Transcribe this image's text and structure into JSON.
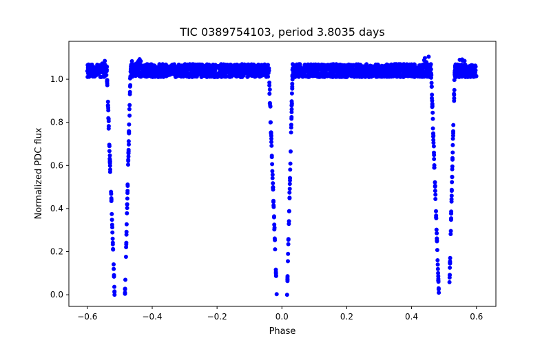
{
  "chart_data": {
    "type": "scatter",
    "title": "TIC 0389754103, period 3.8035 days",
    "xlabel": "Phase",
    "ylabel": "Normalized PDC flux",
    "xlim": [
      -0.657,
      0.66
    ],
    "ylim": [
      -0.054,
      1.176
    ],
    "xticks": [
      -0.6,
      -0.4,
      -0.2,
      0.0,
      0.2,
      0.4,
      0.6
    ],
    "xtick_labels": [
      "−0.6",
      "−0.4",
      "−0.2",
      "0.0",
      "0.2",
      "0.4",
      "0.6"
    ],
    "yticks": [
      0.0,
      0.2,
      0.4,
      0.6,
      0.8,
      1.0
    ],
    "ytick_labels": [
      "0.0",
      "0.2",
      "0.4",
      "0.6",
      "0.8",
      "1.0"
    ],
    "grid": false,
    "marker_color": "#0000ff",
    "series": [
      {
        "name": "flux",
        "phase_range": [
          -0.6,
          0.6
        ],
        "baseline_flux": 1.04,
        "noise_amplitude": 0.03,
        "eclipse_centers": [
          -0.5,
          0.0,
          0.5
        ],
        "eclipse_min_flux": 0.0,
        "ingress_start_offset": -0.04,
        "ingress_end_offset": -0.016,
        "egress_start_offset": 0.016,
        "egress_end_offset": 0.033,
        "n_points": 2600
      }
    ]
  }
}
